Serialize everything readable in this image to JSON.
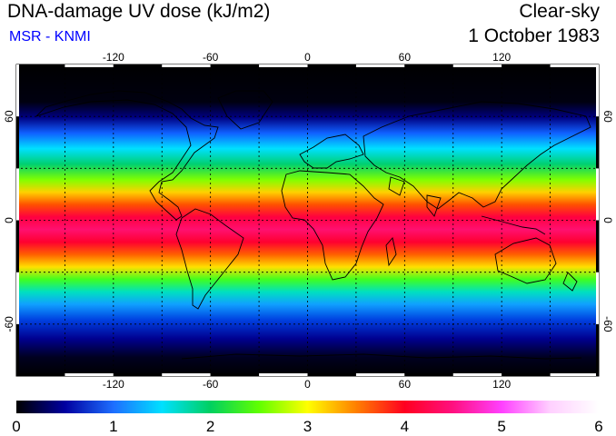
{
  "header": {
    "title": "DNA-damage UV dose (kJ/m2)",
    "subtitle": "MSR - KNMI",
    "condition": "Clear-sky",
    "date": "1 October 1983"
  },
  "map": {
    "longitude_ticks": [
      "-120",
      "-60",
      "0",
      "60",
      "120"
    ],
    "latitude_ticks": [
      "60",
      "0",
      "-60"
    ],
    "longitude_range": [
      -180,
      180
    ],
    "latitude_range": [
      -90,
      90
    ],
    "grid_style": "dotted, every 30 degrees"
  },
  "colorbar": {
    "ticks": [
      "0",
      "1",
      "2",
      "3",
      "4",
      "5",
      "6"
    ],
    "range": [
      0,
      6
    ],
    "colors": [
      "#000000",
      "#0000a0",
      "#1e6eff",
      "#00e0ff",
      "#00d060",
      "#60ff00",
      "#ffff00",
      "#ff8000",
      "#ff0020",
      "#ff1080",
      "#ff40ff",
      "#ffd0ff",
      "#ffffff"
    ]
  },
  "colors": {
    "subtitle": "#0000ff"
  }
}
